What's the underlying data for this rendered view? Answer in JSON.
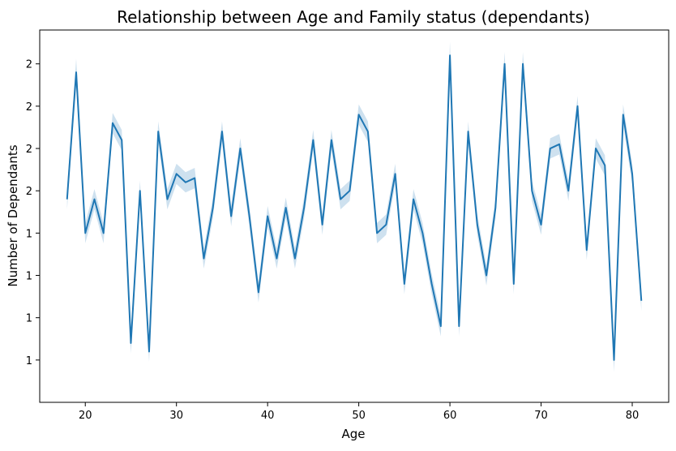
{
  "chart_data": {
    "type": "line",
    "title": "Relationship between Age and Family status (dependants)",
    "xlabel": "Age",
    "ylabel": "Number of Dependants",
    "xlim": [
      15,
      84
    ],
    "ylim": [
      1.35,
      1.79
    ],
    "xticks": [
      20,
      30,
      40,
      50,
      60,
      70,
      80
    ],
    "yticks": [
      {
        "value": 1.4,
        "label": "1"
      },
      {
        "value": 1.45,
        "label": "1"
      },
      {
        "value": 1.5,
        "label": "1"
      },
      {
        "value": 1.55,
        "label": "1"
      },
      {
        "value": 1.6,
        "label": "2"
      },
      {
        "value": 1.65,
        "label": "2"
      },
      {
        "value": 1.7,
        "label": "2"
      },
      {
        "value": 1.75,
        "label": "2"
      }
    ],
    "grid": false,
    "line_color": "#1f77b4",
    "band_color": "#1f77b4",
    "series": [
      {
        "name": "dependants",
        "x": [
          18,
          19,
          20,
          21,
          22,
          23,
          24,
          25,
          26,
          27,
          28,
          29,
          30,
          31,
          32,
          33,
          34,
          35,
          36,
          37,
          38,
          39,
          40,
          41,
          42,
          43,
          44,
          45,
          46,
          47,
          48,
          49,
          50,
          51,
          52,
          53,
          54,
          55,
          56,
          57,
          58,
          59,
          60,
          61,
          62,
          63,
          64,
          65,
          66,
          67,
          68,
          69,
          70,
          71,
          72,
          73,
          74,
          75,
          76,
          77,
          78,
          79,
          80,
          81
        ],
        "y": [
          1.59,
          1.74,
          1.55,
          1.59,
          1.55,
          1.68,
          1.66,
          1.42,
          1.6,
          1.41,
          1.67,
          1.59,
          1.62,
          1.61,
          1.615,
          1.52,
          1.58,
          1.67,
          1.57,
          1.65,
          1.57,
          1.48,
          1.57,
          1.52,
          1.58,
          1.52,
          1.58,
          1.66,
          1.56,
          1.66,
          1.59,
          1.6,
          1.69,
          1.67,
          1.55,
          1.56,
          1.62,
          1.49,
          1.59,
          1.55,
          1.49,
          1.44,
          1.76,
          1.44,
          1.67,
          1.56,
          1.5,
          1.58,
          1.75,
          1.49,
          1.75,
          1.6,
          1.56,
          1.65,
          1.655,
          1.6,
          1.7,
          1.53,
          1.65,
          1.63,
          1.4,
          1.69,
          1.62,
          1.47
        ],
        "ci_width": [
          0.012,
          0.016,
          0.012,
          0.012,
          0.012,
          0.012,
          0.012,
          0.012,
          0.012,
          0.012,
          0.012,
          0.012,
          0.012,
          0.012,
          0.012,
          0.012,
          0.012,
          0.012,
          0.012,
          0.012,
          0.012,
          0.012,
          0.012,
          0.012,
          0.012,
          0.012,
          0.012,
          0.012,
          0.012,
          0.012,
          0.012,
          0.012,
          0.012,
          0.012,
          0.012,
          0.012,
          0.012,
          0.012,
          0.012,
          0.012,
          0.012,
          0.012,
          0.016,
          0.012,
          0.012,
          0.012,
          0.012,
          0.012,
          0.014,
          0.012,
          0.014,
          0.012,
          0.012,
          0.012,
          0.012,
          0.012,
          0.012,
          0.012,
          0.012,
          0.012,
          0.014,
          0.012,
          0.012,
          0.012
        ]
      }
    ]
  }
}
